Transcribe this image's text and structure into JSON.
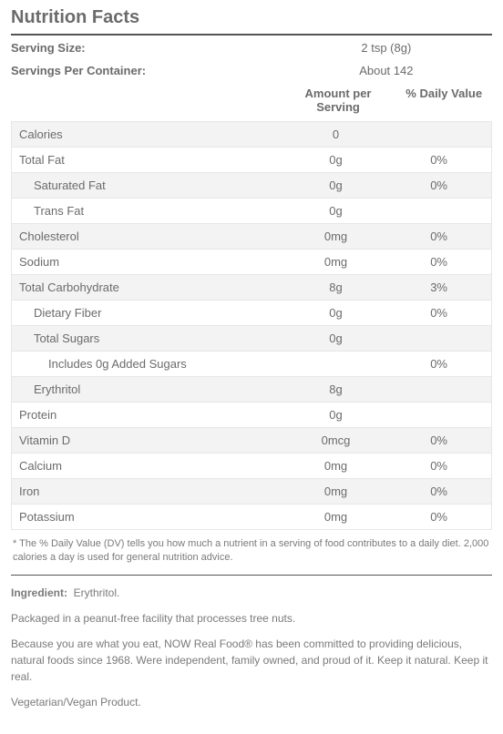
{
  "title": "Nutrition Facts",
  "serving_size_label": "Serving Size:",
  "serving_size_value": "2 tsp (8g)",
  "servings_per_label": "Servings Per Container:",
  "servings_per_value": "About 142",
  "header_aps_line1": "Amount per",
  "header_aps_line2": "Serving",
  "header_dv": "% Daily Value",
  "rows": [
    {
      "name": "Calories",
      "amount": "0",
      "dv": "",
      "indent": 0
    },
    {
      "name": "Total Fat",
      "amount": "0g",
      "dv": "0%",
      "indent": 0
    },
    {
      "name": "Saturated Fat",
      "amount": "0g",
      "dv": "0%",
      "indent": 1
    },
    {
      "name": "Trans Fat",
      "amount": "0g",
      "dv": "",
      "indent": 1
    },
    {
      "name": "Cholesterol",
      "amount": "0mg",
      "dv": "0%",
      "indent": 0
    },
    {
      "name": "Sodium",
      "amount": "0mg",
      "dv": "0%",
      "indent": 0
    },
    {
      "name": "Total Carbohydrate",
      "amount": "8g",
      "dv": "3%",
      "indent": 0
    },
    {
      "name": "Dietary Fiber",
      "amount": "0g",
      "dv": "0%",
      "indent": 1
    },
    {
      "name": "Total Sugars",
      "amount": "0g",
      "dv": "",
      "indent": 1
    },
    {
      "name": "Includes 0g Added Sugars",
      "amount": "",
      "dv": "0%",
      "indent": 2
    },
    {
      "name": "Erythritol",
      "amount": "8g",
      "dv": "",
      "indent": 1
    },
    {
      "name": "Protein",
      "amount": "0g",
      "dv": "",
      "indent": 0
    },
    {
      "name": "Vitamin D",
      "amount": "0mcg",
      "dv": "0%",
      "indent": 0
    },
    {
      "name": "Calcium",
      "amount": "0mg",
      "dv": "0%",
      "indent": 0
    },
    {
      "name": "Iron",
      "amount": "0mg",
      "dv": "0%",
      "indent": 0
    },
    {
      "name": "Potassium",
      "amount": "0mg",
      "dv": "0%",
      "indent": 0
    }
  ],
  "footnote": "* The % Daily Value (DV) tells you how much a nutrient in a serving of food contributes to a daily diet. 2,000 calories a day is used for general nutrition advice.",
  "ingredient_label": "Ingredient:",
  "ingredient_value": "Erythritol.",
  "facility": "Packaged in a peanut-free facility that processes tree nuts.",
  "blurb": "Because you are what you eat, NOW Real Food® has been committed to providing delicious, natural foods since 1968. Were independent, family owned, and proud of it. Keep it natural. Keep it real.",
  "veg": "Vegetarian/Vegan Product.",
  "colors": {
    "text": "#6b6b6b",
    "row_odd": "#f3f3f3",
    "row_even": "#ffffff",
    "border": "#e6e6e6",
    "rule": "#555555"
  }
}
